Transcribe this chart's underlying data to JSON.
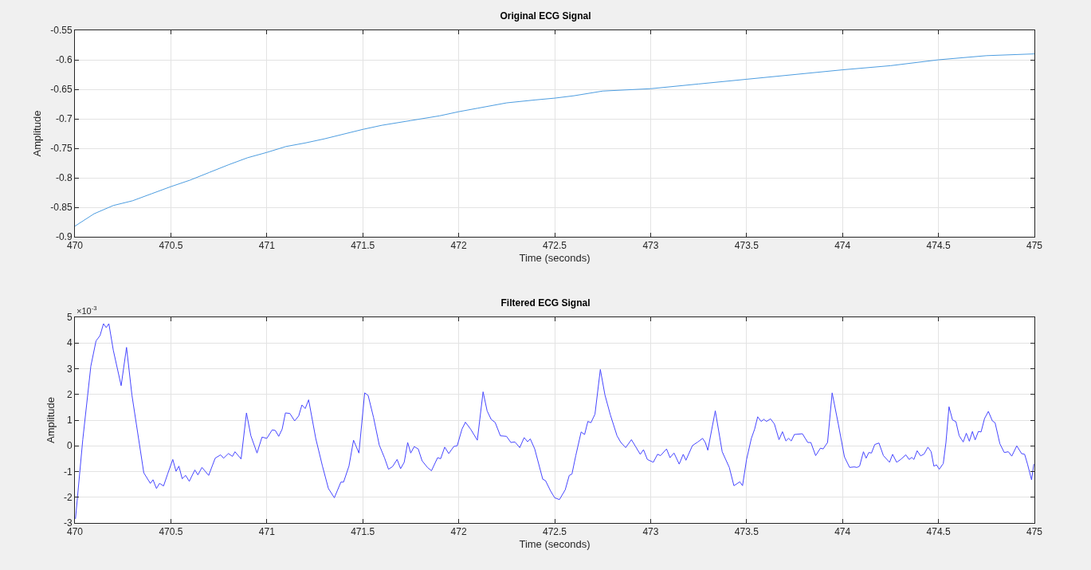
{
  "chart_data": [
    {
      "type": "line",
      "title": "Original ECG Signal",
      "xlabel": "Time (seconds)",
      "ylabel": "Amplitude",
      "xlim": [
        470,
        475
      ],
      "xticks": [
        470,
        470.5,
        471,
        471.5,
        472,
        472.5,
        473,
        473.5,
        474,
        474.5,
        475
      ],
      "ylim": [
        -0.9,
        -0.55
      ],
      "yticks": [
        -0.9,
        -0.85,
        -0.8,
        -0.75,
        -0.7,
        -0.65,
        -0.6,
        -0.55
      ],
      "grid": true,
      "marker": "none",
      "line_style": "solid",
      "x": [
        470,
        470.1,
        470.2,
        470.3,
        470.4,
        470.5,
        470.6,
        470.7,
        470.8,
        470.9,
        471,
        471.1,
        471.2,
        471.3,
        471.4,
        471.5,
        471.6,
        471.75,
        471.9,
        472,
        472.1,
        472.25,
        472.4,
        472.5,
        472.6,
        472.75,
        473,
        473.25,
        473.5,
        473.75,
        474,
        474.25,
        474.5,
        474.75,
        475
      ],
      "series": [
        {
          "color": "#4d9de0",
          "values": [
            -0.882,
            -0.861,
            -0.847,
            -0.839,
            -0.827,
            -0.815,
            -0.804,
            -0.791,
            -0.778,
            -0.766,
            -0.757,
            -0.747,
            -0.741,
            -0.734,
            -0.726,
            -0.718,
            -0.711,
            -0.703,
            -0.695,
            -0.688,
            -0.682,
            -0.673,
            -0.668,
            -0.665,
            -0.661,
            -0.653,
            -0.649,
            -0.641,
            -0.633,
            -0.625,
            -0.617,
            -0.61,
            -0.6,
            -0.593,
            -0.59
          ]
        }
      ]
    },
    {
      "type": "line",
      "title": "Filtered ECG Signal",
      "xlabel": "Time (seconds)",
      "ylabel": "Amplitude",
      "annotations": [
        "×10$^{-3}$"
      ],
      "xlim": [
        470,
        475
      ],
      "xticks": [
        470,
        470.5,
        471,
        471.5,
        472,
        472.5,
        473,
        473.5,
        474,
        474.5,
        475
      ],
      "ylim": [
        -3,
        5
      ],
      "yticks": [
        -3,
        -2,
        -1,
        0,
        1,
        2,
        3,
        4,
        5
      ],
      "grid": true,
      "marker": "none",
      "line_style": "solid",
      "x": [
        470.003,
        470.041,
        470.083,
        470.11,
        470.131,
        470.149,
        470.163,
        470.177,
        470.2,
        470.241,
        470.269,
        470.297,
        470.359,
        470.393,
        470.407,
        470.425,
        470.441,
        470.462,
        470.483,
        470.51,
        470.527,
        470.542,
        470.559,
        470.577,
        470.596,
        470.625,
        470.641,
        470.662,
        470.697,
        470.731,
        470.759,
        470.775,
        470.8,
        470.821,
        470.834,
        470.866,
        470.894,
        470.917,
        470.949,
        470.975,
        471.0,
        471.028,
        471.044,
        471.062,
        471.08,
        471.097,
        471.12,
        471.145,
        471.166,
        471.183,
        471.2,
        471.218,
        471.255,
        471.29,
        471.321,
        471.352,
        471.386,
        471.4,
        471.428,
        471.452,
        471.48,
        471.51,
        471.528,
        471.556,
        471.586,
        471.614,
        471.634,
        471.655,
        471.679,
        471.697,
        471.716,
        471.734,
        471.75,
        471.768,
        471.789,
        471.809,
        471.837,
        471.858,
        471.89,
        471.906,
        471.927,
        471.948,
        471.975,
        471.992,
        472.017,
        472.035,
        472.062,
        472.097,
        472.127,
        472.148,
        472.169,
        472.19,
        472.217,
        472.249,
        472.272,
        472.293,
        472.318,
        472.341,
        472.359,
        472.373,
        472.396,
        472.438,
        472.452,
        472.479,
        472.5,
        472.525,
        472.555,
        472.576,
        472.59,
        472.61,
        472.638,
        472.656,
        472.673,
        472.689,
        472.71,
        472.738,
        472.762,
        472.79,
        472.825,
        472.845,
        472.87,
        472.9,
        472.921,
        472.946,
        472.963,
        472.983,
        473.014,
        473.036,
        473.052,
        473.083,
        473.101,
        473.122,
        473.149,
        473.17,
        473.184,
        473.218,
        473.246,
        473.271,
        473.285,
        473.298,
        473.337,
        473.373,
        473.41,
        473.434,
        473.465,
        473.479,
        473.5,
        473.525,
        473.542,
        473.558,
        473.576,
        473.59,
        473.604,
        473.625,
        473.645,
        473.669,
        473.687,
        473.705,
        473.719,
        473.733,
        473.749,
        473.791,
        473.819,
        473.835,
        473.86,
        473.885,
        473.899,
        473.922,
        473.946,
        473.978,
        474.01,
        474.037,
        474.061,
        474.075,
        474.089,
        474.109,
        474.123,
        474.137,
        474.151,
        474.168,
        474.19,
        474.213,
        474.245,
        474.261,
        474.282,
        474.303,
        474.33,
        474.347,
        474.361,
        474.372,
        474.389,
        474.407,
        474.425,
        474.445,
        474.462,
        474.476,
        474.49,
        474.504,
        474.525,
        474.539,
        474.555,
        474.573,
        474.591,
        474.608,
        474.629,
        474.645,
        474.661,
        474.677,
        474.691,
        474.708,
        474.722,
        474.74,
        474.76,
        474.781,
        474.795,
        474.82,
        474.843,
        474.864,
        474.882,
        474.908,
        474.933,
        474.949,
        474.964,
        474.985,
        474.997
      ],
      "series": [
        {
          "color": "#4646ff",
          "values": [
            -2.84,
            0.24,
            3.1,
            4.08,
            4.29,
            4.75,
            4.6,
            4.75,
            3.72,
            2.34,
            3.83,
            1.98,
            -1.05,
            -1.46,
            -1.32,
            -1.66,
            -1.46,
            -1.56,
            -1.1,
            -0.53,
            -0.99,
            -0.79,
            -1.28,
            -1.15,
            -1.38,
            -0.94,
            -1.13,
            -0.84,
            -1.15,
            -0.48,
            -0.35,
            -0.48,
            -0.3,
            -0.41,
            -0.23,
            -0.51,
            1.28,
            0.39,
            -0.28,
            0.34,
            0.29,
            0.62,
            0.6,
            0.37,
            0.65,
            1.28,
            1.26,
            0.97,
            1.16,
            1.59,
            1.45,
            1.79,
            0.29,
            -0.79,
            -1.66,
            -2.02,
            -1.41,
            -1.41,
            -0.79,
            0.22,
            -0.28,
            2.06,
            1.96,
            1.11,
            0.03,
            -0.48,
            -0.91,
            -0.81,
            -0.53,
            -0.89,
            -0.64,
            0.13,
            -0.28,
            -0.03,
            -0.12,
            -0.58,
            -0.84,
            -0.97,
            -0.46,
            -0.5,
            -0.05,
            -0.3,
            -0.02,
            0.0,
            0.65,
            0.92,
            0.65,
            0.22,
            2.1,
            1.36,
            1.03,
            0.91,
            0.39,
            0.37,
            0.13,
            0.15,
            -0.07,
            0.32,
            0.16,
            0.27,
            -0.12,
            -1.3,
            -1.35,
            -1.76,
            -2.02,
            -2.09,
            -1.71,
            -1.15,
            -1.1,
            -0.38,
            0.54,
            0.44,
            0.95,
            0.9,
            1.23,
            2.97,
            1.98,
            1.21,
            0.39,
            0.13,
            -0.07,
            0.24,
            -0.02,
            -0.33,
            -0.15,
            -0.53,
            -0.64,
            -0.33,
            -0.38,
            -0.12,
            -0.46,
            -0.28,
            -0.71,
            -0.33,
            -0.56,
            0.01,
            0.15,
            0.29,
            0.13,
            -0.17,
            1.36,
            -0.23,
            -0.84,
            -1.55,
            -1.4,
            -1.55,
            -0.53,
            0.29,
            0.65,
            1.13,
            0.95,
            1.03,
            0.95,
            1.05,
            0.85,
            0.24,
            0.55,
            0.19,
            0.29,
            0.19,
            0.44,
            0.47,
            0.13,
            0.13,
            -0.38,
            -0.09,
            -0.12,
            0.13,
            2.06,
            0.85,
            -0.43,
            -0.84,
            -0.82,
            -0.84,
            -0.79,
            -0.23,
            -0.48,
            -0.26,
            -0.28,
            0.05,
            0.11,
            -0.38,
            -0.64,
            -0.33,
            -0.64,
            -0.53,
            -0.35,
            -0.53,
            -0.45,
            -0.53,
            -0.19,
            -0.39,
            -0.32,
            -0.05,
            -0.23,
            -0.79,
            -0.74,
            -0.91,
            -0.69,
            0.13,
            1.52,
            1.01,
            0.94,
            0.39,
            0.15,
            0.49,
            0.18,
            0.56,
            0.23,
            0.56,
            0.54,
            1.06,
            1.34,
            0.97,
            0.9,
            0.08,
            -0.26,
            -0.23,
            -0.4,
            0.0,
            -0.3,
            -0.33,
            -0.71,
            -1.32,
            -0.71
          ]
        }
      ]
    }
  ]
}
